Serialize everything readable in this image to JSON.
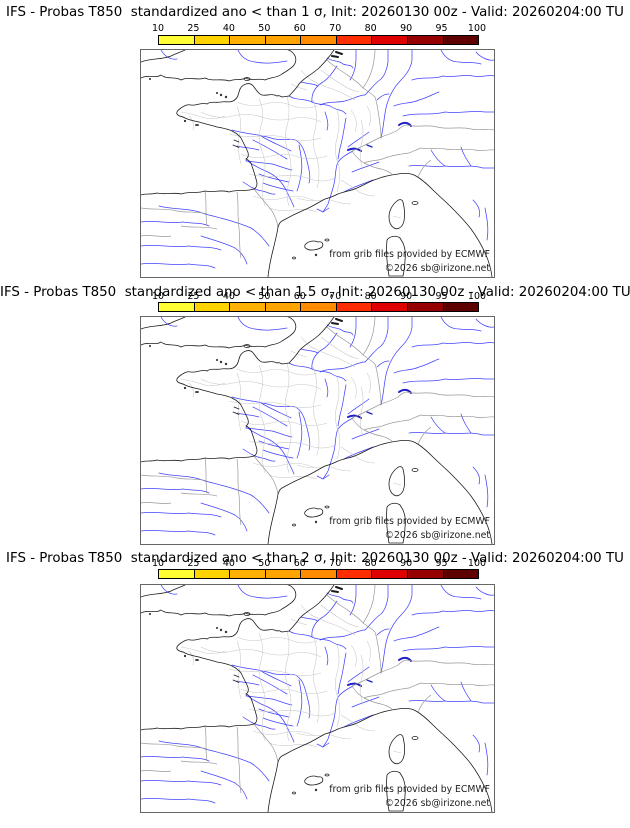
{
  "panels": [
    {
      "title": "IFS - Probas T850  standardized ano < than 1 σ, Init: 20260130 00z - Valid: 20260204:00 TU"
    },
    {
      "title": "IFS - Probas T850  standardized ano < than 1.5 σ, Init: 20260130 00z - Valid: 20260204:00 TU"
    },
    {
      "title": "IFS - Probas T850  standardized ano < than 2 σ, Init: 20260130 00z - Valid: 20260204:00 TU"
    }
  ],
  "colorbar": {
    "tick_labels": [
      "10",
      "25",
      "40",
      "50",
      "60",
      "70",
      "80",
      "90",
      "95",
      "100"
    ],
    "segment_colors": [
      "#ffff33",
      "#ffd300",
      "#ffb000",
      "#ffa300",
      "#ff8c00",
      "#ff2d00",
      "#df0000",
      "#970000",
      "#5f0000"
    ]
  },
  "map": {
    "credit_line1": "from grib files provided by ECMWF",
    "credit_line2": "©2026 sb@irizone.net",
    "colors": {
      "coast": "#1c1c1c",
      "country_border": "#999999",
      "department": "#c8c8c8",
      "river": "#4242ff",
      "lake": "#2020c8"
    }
  }
}
